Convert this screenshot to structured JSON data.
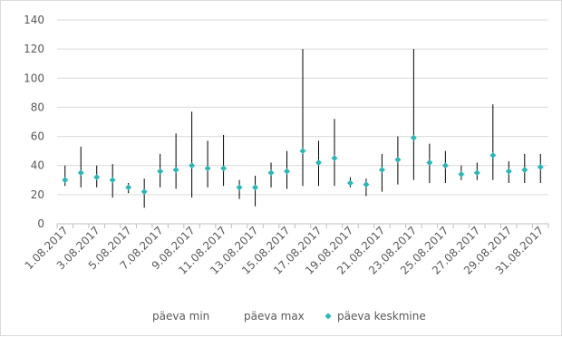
{
  "chart_data": {
    "type": "stock-hlc",
    "title": "",
    "xlabel": "",
    "ylabel": "",
    "ylim": [
      0,
      140
    ],
    "yticks": [
      0,
      20,
      40,
      60,
      80,
      100,
      120,
      140
    ],
    "grid": "horizontal",
    "legend_position": "bottom",
    "categories": [
      "1.08.2017",
      "2.08.2017",
      "3.08.2017",
      "4.08.2017",
      "5.08.2017",
      "6.08.2017",
      "7.08.2017",
      "8.08.2017",
      "9.08.2017",
      "10.08.2017",
      "11.08.2017",
      "12.08.2017",
      "13.08.2017",
      "14.08.2017",
      "15.08.2017",
      "16.08.2017",
      "17.08.2017",
      "18.08.2017",
      "19.08.2017",
      "20.08.2017",
      "21.08.2017",
      "22.08.2017",
      "23.08.2017",
      "24.08.2017",
      "25.08.2017",
      "26.08.2017",
      "27.08.2017",
      "28.08.2017",
      "29.08.2017",
      "30.08.2017",
      "31.08.2017"
    ],
    "tick_labels": [
      "1.08.2017",
      "3.08.2017",
      "5.08.2017",
      "7.08.2017",
      "9.08.2017",
      "11.08.2017",
      "13.08.2017",
      "15.08.2017",
      "17.08.2017",
      "19.08.2017",
      "21.08.2017",
      "23.08.2017",
      "25.08.2017",
      "27.08.2017",
      "29.08.2017",
      "31.08.2017"
    ],
    "series": [
      {
        "name": "päeva min",
        "values": [
          26,
          25,
          25,
          18,
          21,
          11,
          25,
          24,
          18,
          25,
          26,
          17,
          12,
          25,
          24,
          26,
          26,
          26,
          25,
          19,
          22,
          27,
          30,
          28,
          28,
          30,
          30,
          30,
          28,
          28,
          28
        ]
      },
      {
        "name": "päeva max",
        "values": [
          40,
          53,
          40,
          41,
          28,
          31,
          48,
          62,
          77,
          57,
          61,
          30,
          33,
          42,
          50,
          120,
          57,
          72,
          32,
          31,
          48,
          60,
          120,
          55,
          50,
          40,
          42,
          82,
          43,
          48,
          48
        ]
      },
      {
        "name": "päeva keskmine",
        "values": [
          30,
          35,
          32,
          30,
          25,
          22,
          36,
          37,
          40,
          38,
          38,
          25,
          25,
          35,
          36,
          50,
          42,
          45,
          28,
          27,
          37,
          44,
          59,
          42,
          40,
          34,
          35,
          47,
          36,
          37,
          39
        ]
      }
    ],
    "colors": {
      "range_line": "#000000",
      "marker": "#2fb5b5",
      "grid": "#d9d9d9",
      "axis": "#bfbfbf",
      "text": "#595959"
    }
  }
}
